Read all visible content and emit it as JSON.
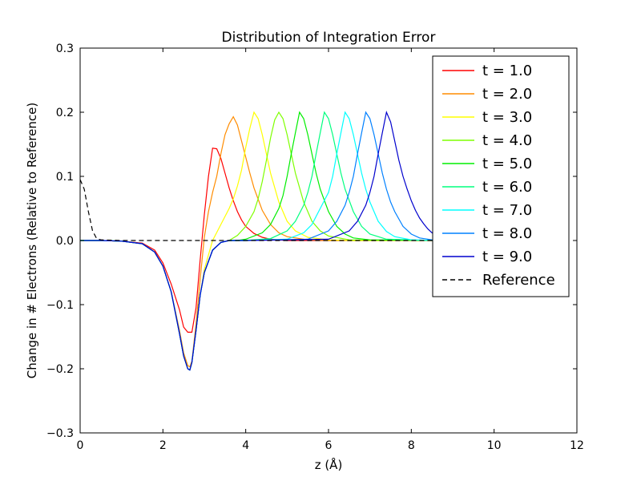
{
  "chart_data": {
    "type": "line",
    "title": "Distribution of Integration Error",
    "xlabel": "z (Å)",
    "ylabel": "Change in # Electrons (Relative to Reference)",
    "xlim": [
      0,
      12
    ],
    "ylim": [
      -0.3,
      0.3
    ],
    "xticks": [
      "0",
      "2",
      "4",
      "6",
      "8",
      "10",
      "12"
    ],
    "yticks": [
      "0.3",
      "0.2",
      "0.1",
      "0.0",
      "−0.1",
      "−0.2",
      "−0.3"
    ],
    "grid": false,
    "legend_position": "top-right",
    "series": [
      {
        "name": "t = 1.0",
        "color": "#ff0000",
        "dash": "solid",
        "x": [
          0.0,
          0.5,
          1.0,
          1.5,
          1.8,
          2.0,
          2.2,
          2.4,
          2.5,
          2.6,
          2.7,
          2.8,
          2.9,
          3.0,
          3.1,
          3.2,
          3.3,
          3.4,
          3.5,
          3.6,
          3.7,
          3.8,
          3.9,
          4.0,
          4.2,
          4.4,
          4.6,
          4.8,
          5.0,
          5.5,
          6.0,
          7.0,
          8.6
        ],
        "y": [
          0.0,
          0.0,
          -0.001,
          -0.004,
          -0.015,
          -0.035,
          -0.068,
          -0.108,
          -0.135,
          -0.143,
          -0.143,
          -0.105,
          -0.03,
          0.04,
          0.1,
          0.144,
          0.143,
          0.128,
          0.105,
          0.082,
          0.062,
          0.045,
          0.032,
          0.022,
          0.011,
          0.005,
          0.002,
          0.001,
          0.0,
          0.0,
          0.0,
          0.0,
          0.0
        ]
      },
      {
        "name": "t = 2.0",
        "color": "#ff8c00",
        "dash": "solid",
        "x": [
          0.0,
          0.5,
          1.0,
          1.5,
          1.8,
          2.0,
          2.2,
          2.4,
          2.5,
          2.6,
          2.65,
          2.7,
          2.8,
          2.9,
          3.0,
          3.1,
          3.2,
          3.3,
          3.4,
          3.5,
          3.6,
          3.7,
          3.8,
          3.9,
          4.0,
          4.1,
          4.2,
          4.4,
          4.6,
          4.8,
          5.0,
          5.5,
          6.0,
          8.6
        ],
        "y": [
          0.0,
          0.0,
          -0.001,
          -0.005,
          -0.018,
          -0.04,
          -0.08,
          -0.14,
          -0.175,
          -0.195,
          -0.197,
          -0.188,
          -0.13,
          -0.06,
          0.005,
          0.045,
          0.075,
          0.1,
          0.135,
          0.165,
          0.182,
          0.193,
          0.18,
          0.155,
          0.13,
          0.105,
          0.082,
          0.047,
          0.025,
          0.012,
          0.006,
          0.001,
          0.0,
          0.0
        ]
      },
      {
        "name": "t = 3.0",
        "color": "#ffff00",
        "dash": "solid",
        "x": [
          0.0,
          0.5,
          1.0,
          1.5,
          1.8,
          2.0,
          2.2,
          2.4,
          2.5,
          2.6,
          2.65,
          2.7,
          2.8,
          2.9,
          3.0,
          3.2,
          3.4,
          3.6,
          3.7,
          3.8,
          3.9,
          4.0,
          4.1,
          4.2,
          4.3,
          4.4,
          4.5,
          4.6,
          4.8,
          5.0,
          5.2,
          5.5,
          6.0,
          6.5,
          8.6
        ],
        "y": [
          0.0,
          0.0,
          -0.001,
          -0.005,
          -0.018,
          -0.04,
          -0.08,
          -0.145,
          -0.18,
          -0.2,
          -0.202,
          -0.19,
          -0.14,
          -0.085,
          -0.045,
          0.0,
          0.025,
          0.05,
          0.065,
          0.085,
          0.11,
          0.145,
          0.175,
          0.2,
          0.19,
          0.165,
          0.135,
          0.105,
          0.06,
          0.03,
          0.015,
          0.005,
          0.001,
          0.0,
          0.0
        ]
      },
      {
        "name": "t = 4.0",
        "color": "#7fff00",
        "dash": "solid",
        "x": [
          0.0,
          0.5,
          1.0,
          1.5,
          1.8,
          2.0,
          2.2,
          2.4,
          2.5,
          2.6,
          2.65,
          2.7,
          2.8,
          2.9,
          3.0,
          3.2,
          3.4,
          3.6,
          3.8,
          4.0,
          4.2,
          4.3,
          4.4,
          4.5,
          4.6,
          4.7,
          4.8,
          4.9,
          5.0,
          5.1,
          5.2,
          5.4,
          5.6,
          5.8,
          6.0,
          6.5,
          8.6
        ],
        "y": [
          0.0,
          0.0,
          -0.001,
          -0.005,
          -0.018,
          -0.04,
          -0.08,
          -0.145,
          -0.18,
          -0.2,
          -0.202,
          -0.19,
          -0.14,
          -0.085,
          -0.05,
          -0.015,
          -0.003,
          0.0,
          0.008,
          0.022,
          0.045,
          0.065,
          0.092,
          0.125,
          0.16,
          0.188,
          0.2,
          0.19,
          0.165,
          0.135,
          0.105,
          0.06,
          0.03,
          0.015,
          0.007,
          0.001,
          0.0
        ]
      },
      {
        "name": "t = 5.0",
        "color": "#00ee00",
        "dash": "solid",
        "x": [
          0.0,
          0.5,
          1.0,
          1.5,
          1.8,
          2.0,
          2.2,
          2.4,
          2.5,
          2.6,
          2.65,
          2.7,
          2.8,
          2.9,
          3.0,
          3.2,
          3.4,
          3.6,
          3.8,
          4.0,
          4.4,
          4.6,
          4.8,
          4.9,
          5.0,
          5.1,
          5.2,
          5.3,
          5.4,
          5.5,
          5.6,
          5.7,
          5.8,
          6.0,
          6.2,
          6.4,
          6.6,
          7.0,
          8.6
        ],
        "y": [
          0.0,
          0.0,
          -0.001,
          -0.005,
          -0.018,
          -0.04,
          -0.08,
          -0.145,
          -0.18,
          -0.2,
          -0.202,
          -0.19,
          -0.14,
          -0.085,
          -0.05,
          -0.015,
          -0.003,
          0.0,
          0.0,
          0.002,
          0.012,
          0.025,
          0.05,
          0.07,
          0.1,
          0.135,
          0.168,
          0.2,
          0.19,
          0.165,
          0.135,
          0.105,
          0.08,
          0.045,
          0.022,
          0.01,
          0.004,
          0.001,
          0.0
        ]
      },
      {
        "name": "t = 6.0",
        "color": "#00ff7f",
        "dash": "solid",
        "x": [
          0.0,
          0.5,
          1.0,
          1.5,
          1.8,
          2.0,
          2.2,
          2.4,
          2.5,
          2.6,
          2.65,
          2.7,
          2.8,
          2.9,
          3.0,
          3.2,
          3.4,
          3.6,
          3.8,
          4.0,
          4.6,
          5.0,
          5.2,
          5.4,
          5.5,
          5.6,
          5.7,
          5.8,
          5.9,
          6.0,
          6.1,
          6.2,
          6.3,
          6.4,
          6.6,
          6.8,
          7.0,
          7.4,
          8.6
        ],
        "y": [
          0.0,
          0.0,
          -0.001,
          -0.005,
          -0.018,
          -0.04,
          -0.08,
          -0.145,
          -0.18,
          -0.2,
          -0.202,
          -0.19,
          -0.14,
          -0.085,
          -0.05,
          -0.015,
          -0.003,
          0.0,
          0.0,
          0.0,
          0.003,
          0.015,
          0.03,
          0.055,
          0.075,
          0.1,
          0.135,
          0.168,
          0.2,
          0.19,
          0.165,
          0.135,
          0.105,
          0.08,
          0.045,
          0.022,
          0.01,
          0.002,
          0.0
        ]
      },
      {
        "name": "t = 7.0",
        "color": "#00ffff",
        "dash": "solid",
        "x": [
          0.0,
          0.5,
          1.0,
          1.5,
          1.8,
          2.0,
          2.2,
          2.4,
          2.5,
          2.6,
          2.65,
          2.7,
          2.8,
          2.9,
          3.0,
          3.2,
          3.4,
          3.6,
          3.8,
          4.0,
          5.0,
          5.4,
          5.6,
          5.8,
          6.0,
          6.1,
          6.2,
          6.3,
          6.4,
          6.5,
          6.6,
          6.7,
          6.8,
          6.9,
          7.0,
          7.2,
          7.4,
          7.6,
          8.0,
          8.6
        ],
        "y": [
          0.0,
          0.0,
          -0.001,
          -0.005,
          -0.018,
          -0.04,
          -0.08,
          -0.145,
          -0.18,
          -0.2,
          -0.202,
          -0.19,
          -0.14,
          -0.085,
          -0.05,
          -0.015,
          -0.003,
          0.0,
          0.0,
          0.0,
          0.002,
          0.012,
          0.025,
          0.05,
          0.075,
          0.1,
          0.135,
          0.168,
          0.2,
          0.19,
          0.165,
          0.135,
          0.105,
          0.08,
          0.06,
          0.03,
          0.014,
          0.006,
          0.001,
          0.0
        ]
      },
      {
        "name": "t = 8.0",
        "color": "#0080ff",
        "dash": "solid",
        "x": [
          0.0,
          0.5,
          1.0,
          1.5,
          1.8,
          2.0,
          2.2,
          2.4,
          2.5,
          2.6,
          2.65,
          2.7,
          2.8,
          2.9,
          3.0,
          3.2,
          3.4,
          3.6,
          3.8,
          4.0,
          5.5,
          6.0,
          6.2,
          6.4,
          6.5,
          6.6,
          6.7,
          6.8,
          6.9,
          7.0,
          7.1,
          7.2,
          7.3,
          7.4,
          7.5,
          7.6,
          7.8,
          8.0,
          8.2,
          8.6
        ],
        "y": [
          0.0,
          0.0,
          -0.001,
          -0.005,
          -0.018,
          -0.04,
          -0.08,
          -0.145,
          -0.18,
          -0.2,
          -0.202,
          -0.19,
          -0.14,
          -0.085,
          -0.05,
          -0.015,
          -0.003,
          0.0,
          0.0,
          0.0,
          0.002,
          0.015,
          0.03,
          0.055,
          0.075,
          0.1,
          0.135,
          0.168,
          0.2,
          0.19,
          0.165,
          0.135,
          0.105,
          0.08,
          0.06,
          0.045,
          0.022,
          0.01,
          0.004,
          0.0
        ]
      },
      {
        "name": "t = 9.0",
        "color": "#0000cd",
        "dash": "solid",
        "x": [
          0.0,
          0.5,
          1.0,
          1.5,
          1.8,
          2.0,
          2.2,
          2.4,
          2.5,
          2.6,
          2.65,
          2.7,
          2.8,
          2.9,
          3.0,
          3.2,
          3.4,
          3.6,
          3.8,
          4.0,
          6.0,
          6.5,
          6.7,
          6.9,
          7.0,
          7.1,
          7.2,
          7.3,
          7.4,
          7.5,
          7.6,
          7.7,
          7.8,
          7.9,
          8.0,
          8.1,
          8.2,
          8.3,
          8.4,
          8.5,
          8.6
        ],
        "y": [
          0.0,
          0.0,
          -0.001,
          -0.005,
          -0.018,
          -0.04,
          -0.08,
          -0.145,
          -0.18,
          -0.2,
          -0.202,
          -0.19,
          -0.14,
          -0.085,
          -0.05,
          -0.015,
          -0.003,
          0.0,
          0.0,
          0.0,
          0.002,
          0.015,
          0.03,
          0.055,
          0.075,
          0.1,
          0.135,
          0.168,
          0.2,
          0.185,
          0.155,
          0.125,
          0.1,
          0.08,
          0.062,
          0.047,
          0.035,
          0.026,
          0.018,
          0.012,
          0.008
        ]
      },
      {
        "name": "Reference",
        "color": "#000000",
        "dash": "dashed",
        "x": [
          0.0,
          0.1,
          0.2,
          0.3,
          0.4,
          0.5,
          1.0,
          2.0,
          4.0,
          6.0,
          8.0,
          8.6
        ],
        "y": [
          0.095,
          0.08,
          0.045,
          0.015,
          0.003,
          0.001,
          0.0,
          0.0,
          0.0,
          0.0,
          0.0,
          0.0
        ]
      }
    ]
  }
}
